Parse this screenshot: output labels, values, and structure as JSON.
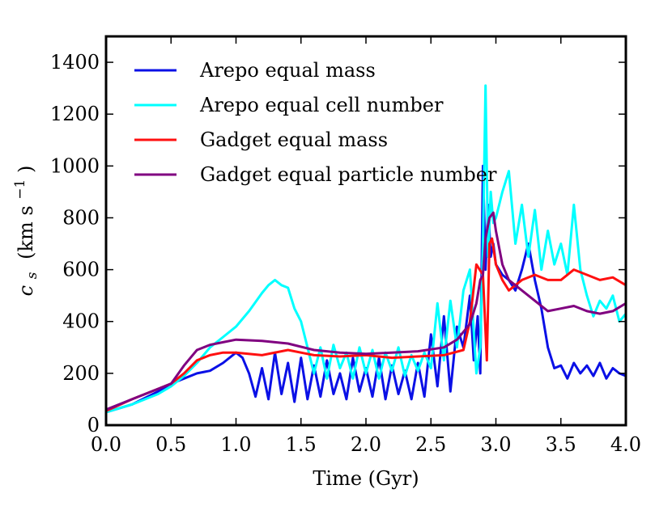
{
  "chart_data": {
    "type": "line",
    "xlabel": "Time (Gyr)",
    "ylabel": "c_s (km s^-1)",
    "ylabel_parts": {
      "symbol": "c",
      "subscript": "s",
      "units_open": "(km s",
      "exponent": "−1",
      "units_close": ")"
    },
    "xlim": [
      0.0,
      4.0
    ],
    "ylim": [
      0,
      1500
    ],
    "xticks": [
      0.0,
      0.5,
      1.0,
      1.5,
      2.0,
      2.5,
      3.0,
      3.5,
      4.0
    ],
    "xtick_labels": [
      "0.0",
      "0.5",
      "1.0",
      "1.5",
      "2.0",
      "2.5",
      "3.0",
      "3.5",
      "4.0"
    ],
    "yticks": [
      0,
      200,
      400,
      600,
      800,
      1000,
      1200,
      1400
    ],
    "ytick_labels": [
      "0",
      "200",
      "400",
      "600",
      "800",
      "1000",
      "1200",
      "1400"
    ],
    "grid": false,
    "legend_position": "top-left",
    "series": [
      {
        "name": "Arepo equal mass",
        "color": "#0a10e6",
        "x": [
          0.0,
          0.2,
          0.4,
          0.5,
          0.6,
          0.7,
          0.8,
          0.9,
          1.0,
          1.05,
          1.1,
          1.15,
          1.2,
          1.25,
          1.3,
          1.35,
          1.4,
          1.45,
          1.5,
          1.55,
          1.6,
          1.65,
          1.7,
          1.75,
          1.8,
          1.85,
          1.9,
          1.95,
          2.0,
          2.05,
          2.1,
          2.15,
          2.2,
          2.25,
          2.3,
          2.35,
          2.4,
          2.45,
          2.5,
          2.55,
          2.6,
          2.65,
          2.7,
          2.75,
          2.8,
          2.83,
          2.86,
          2.88,
          2.9,
          2.92,
          2.94,
          2.96,
          2.98,
          3.0,
          3.05,
          3.1,
          3.15,
          3.2,
          3.25,
          3.3,
          3.35,
          3.4,
          3.45,
          3.5,
          3.55,
          3.6,
          3.65,
          3.7,
          3.75,
          3.8,
          3.85,
          3.9,
          3.95,
          4.0
        ],
        "y": [
          50,
          80,
          130,
          160,
          180,
          200,
          210,
          240,
          280,
          260,
          200,
          110,
          220,
          100,
          280,
          120,
          240,
          90,
          260,
          100,
          230,
          110,
          250,
          120,
          200,
          100,
          260,
          130,
          220,
          110,
          260,
          100,
          230,
          120,
          210,
          100,
          240,
          110,
          350,
          150,
          420,
          130,
          380,
          300,
          500,
          250,
          420,
          200,
          1000,
          600,
          850,
          650,
          700,
          620,
          580,
          560,
          520,
          600,
          700,
          560,
          450,
          300,
          220,
          230,
          180,
          240,
          200,
          230,
          190,
          240,
          180,
          220,
          200,
          190
        ]
      },
      {
        "name": "Arepo equal cell number",
        "color": "#00ffff",
        "x": [
          0.0,
          0.2,
          0.4,
          0.5,
          0.6,
          0.7,
          0.8,
          0.9,
          1.0,
          1.1,
          1.2,
          1.25,
          1.3,
          1.35,
          1.4,
          1.45,
          1.5,
          1.55,
          1.6,
          1.65,
          1.7,
          1.75,
          1.8,
          1.85,
          1.9,
          1.95,
          2.0,
          2.05,
          2.1,
          2.15,
          2.2,
          2.25,
          2.3,
          2.35,
          2.4,
          2.45,
          2.5,
          2.55,
          2.6,
          2.65,
          2.7,
          2.75,
          2.8,
          2.85,
          2.88,
          2.9,
          2.92,
          2.94,
          2.96,
          2.98,
          3.0,
          3.05,
          3.1,
          3.15,
          3.2,
          3.25,
          3.3,
          3.35,
          3.4,
          3.45,
          3.5,
          3.55,
          3.6,
          3.65,
          3.7,
          3.75,
          3.8,
          3.85,
          3.9,
          3.95,
          4.0
        ],
        "y": [
          50,
          80,
          120,
          150,
          190,
          240,
          300,
          340,
          380,
          440,
          510,
          540,
          560,
          540,
          530,
          450,
          400,
          300,
          200,
          300,
          180,
          310,
          220,
          280,
          180,
          300,
          200,
          290,
          180,
          280,
          210,
          300,
          190,
          270,
          210,
          280,
          220,
          470,
          250,
          480,
          300,
          520,
          600,
          200,
          300,
          700,
          1310,
          650,
          900,
          780,
          800,
          900,
          980,
          700,
          850,
          650,
          830,
          600,
          750,
          620,
          700,
          580,
          850,
          600,
          500,
          420,
          480,
          450,
          500,
          400,
          430
        ]
      },
      {
        "name": "Gadget equal mass",
        "color": "#ff1010",
        "x": [
          0.0,
          0.2,
          0.4,
          0.5,
          0.6,
          0.7,
          0.8,
          0.9,
          1.0,
          1.2,
          1.4,
          1.6,
          1.8,
          2.0,
          2.2,
          2.4,
          2.6,
          2.75,
          2.8,
          2.85,
          2.9,
          2.93,
          2.95,
          2.97,
          3.0,
          3.05,
          3.1,
          3.2,
          3.3,
          3.4,
          3.5,
          3.6,
          3.7,
          3.8,
          3.9,
          4.0
        ],
        "y": [
          55,
          100,
          140,
          160,
          200,
          250,
          270,
          280,
          280,
          270,
          290,
          270,
          265,
          270,
          260,
          265,
          270,
          290,
          400,
          620,
          580,
          250,
          700,
          720,
          620,
          560,
          520,
          560,
          580,
          560,
          560,
          600,
          580,
          560,
          570,
          540
        ]
      },
      {
        "name": "Gadget equal particle number",
        "color": "#800080",
        "x": [
          0.0,
          0.2,
          0.4,
          0.5,
          0.6,
          0.65,
          0.7,
          0.8,
          0.9,
          1.0,
          1.2,
          1.4,
          1.6,
          1.8,
          2.0,
          2.2,
          2.4,
          2.6,
          2.7,
          2.8,
          2.85,
          2.88,
          2.9,
          2.92,
          2.95,
          2.98,
          3.0,
          3.05,
          3.1,
          3.2,
          3.3,
          3.4,
          3.5,
          3.6,
          3.7,
          3.8,
          3.9,
          4.0
        ],
        "y": [
          60,
          100,
          140,
          160,
          230,
          260,
          290,
          310,
          320,
          330,
          325,
          315,
          290,
          280,
          275,
          280,
          285,
          300,
          330,
          390,
          470,
          560,
          580,
          720,
          800,
          820,
          750,
          620,
          560,
          520,
          480,
          440,
          450,
          460,
          440,
          430,
          440,
          470
        ]
      }
    ],
    "legend": [
      {
        "label": "Arepo equal mass",
        "color": "#0a10e6"
      },
      {
        "label": "Arepo equal cell number",
        "color": "#00ffff"
      },
      {
        "label": "Gadget equal mass",
        "color": "#ff1010"
      },
      {
        "label": "Gadget equal particle number",
        "color": "#800080"
      }
    ]
  }
}
